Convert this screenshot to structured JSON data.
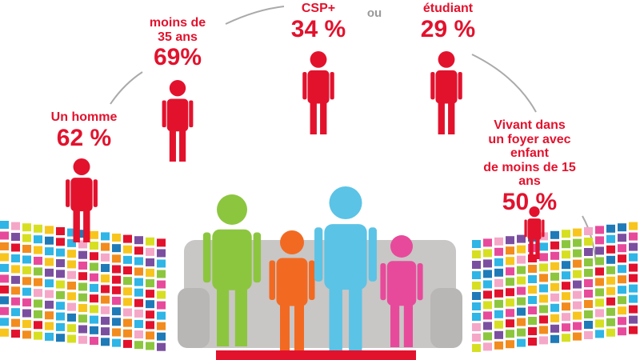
{
  "steps": [
    {
      "label": "Un homme",
      "value": "62 %"
    },
    {
      "label": "moins de\n35 ans",
      "value": "69%"
    },
    {
      "label": "CSP+",
      "value": "34 %"
    },
    {
      "label": "étudiant",
      "value": "29 %"
    },
    {
      "label": "Vivant dans\nun foyer avec enfant\nde moins de 15 ans",
      "value": "50 %"
    }
  ],
  "connector": "ou"
}
